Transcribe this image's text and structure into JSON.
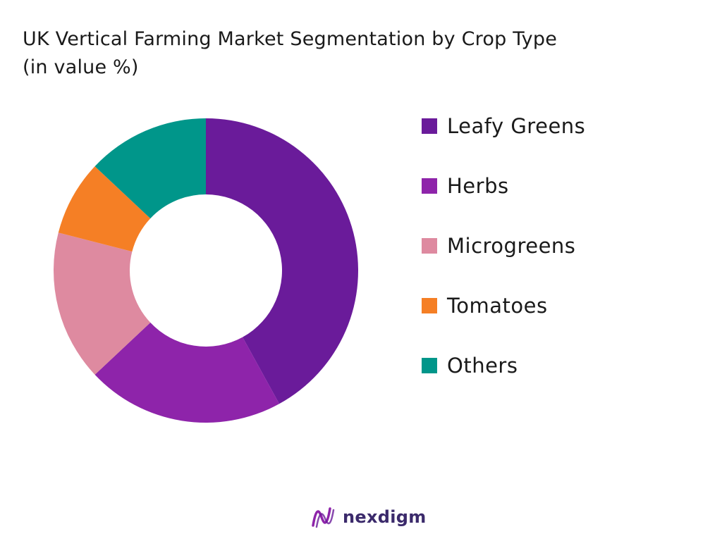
{
  "chart_data": {
    "type": "pie",
    "title": "UK Vertical Farming Market Segmentation by Crop Type",
    "subtitle": "(in value %)",
    "categories": [
      "Leafy Greens",
      "Herbs",
      "Microgreens",
      "Tomatoes",
      "Others"
    ],
    "values": [
      42,
      21,
      16,
      8,
      13
    ],
    "colors": [
      "#6a1b9a",
      "#8e24aa",
      "#de8aa0",
      "#f57f25",
      "#00968a"
    ],
    "donut": true,
    "legend": "right"
  },
  "footer": {
    "brand": "nexdigm",
    "logo_icon": "nexdigm-logo-icon"
  }
}
